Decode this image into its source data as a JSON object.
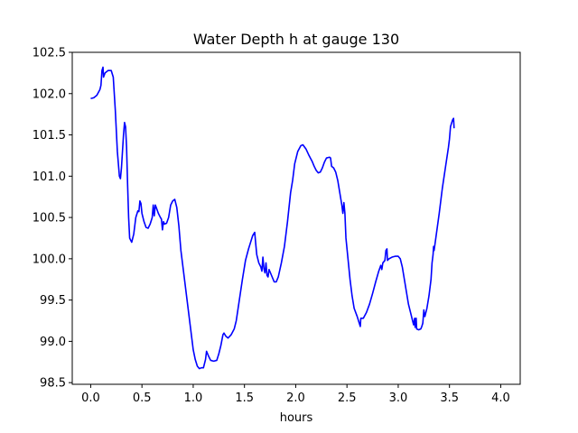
{
  "chart_data": {
    "type": "line",
    "title": "Water Depth h at gauge 130",
    "xlabel": "hours",
    "ylabel": "",
    "xlim": [
      -0.18,
      4.19
    ],
    "ylim": [
      98.48,
      102.5
    ],
    "xticks": [
      0.0,
      0.5,
      1.0,
      1.5,
      2.0,
      2.5,
      3.0,
      3.5,
      4.0
    ],
    "xtick_labels": [
      "0.0",
      "0.5",
      "1.0",
      "1.5",
      "2.0",
      "2.5",
      "3.0",
      "3.5",
      "4.0"
    ],
    "yticks": [
      98.5,
      99.0,
      99.5,
      100.0,
      100.5,
      101.0,
      101.5,
      102.0,
      102.5
    ],
    "ytick_labels": [
      "98.5",
      "99.0",
      "99.5",
      "100.0",
      "100.5",
      "101.0",
      "101.5",
      "102.0",
      "102.5"
    ],
    "grid": false,
    "series": [
      {
        "color": "#0000ff",
        "points": [
          [
            0.0,
            101.94
          ],
          [
            0.03,
            101.95
          ],
          [
            0.06,
            101.98
          ],
          [
            0.09,
            102.05
          ],
          [
            0.1,
            102.1
          ],
          [
            0.11,
            102.28
          ],
          [
            0.12,
            102.32
          ],
          [
            0.125,
            102.2
          ],
          [
            0.14,
            102.25
          ],
          [
            0.17,
            102.28
          ],
          [
            0.2,
            102.28
          ],
          [
            0.22,
            102.2
          ],
          [
            0.24,
            101.8
          ],
          [
            0.26,
            101.3
          ],
          [
            0.28,
            101.0
          ],
          [
            0.29,
            100.97
          ],
          [
            0.3,
            101.1
          ],
          [
            0.32,
            101.5
          ],
          [
            0.33,
            101.65
          ],
          [
            0.34,
            101.6
          ],
          [
            0.35,
            101.35
          ],
          [
            0.36,
            100.9
          ],
          [
            0.37,
            100.5
          ],
          [
            0.38,
            100.25
          ],
          [
            0.4,
            100.2
          ],
          [
            0.42,
            100.3
          ],
          [
            0.44,
            100.5
          ],
          [
            0.46,
            100.58
          ],
          [
            0.47,
            100.57
          ],
          [
            0.48,
            100.7
          ],
          [
            0.49,
            100.67
          ],
          [
            0.5,
            100.55
          ],
          [
            0.52,
            100.45
          ],
          [
            0.54,
            100.38
          ],
          [
            0.56,
            100.37
          ],
          [
            0.58,
            100.42
          ],
          [
            0.6,
            100.5
          ],
          [
            0.61,
            100.65
          ],
          [
            0.62,
            100.52
          ],
          [
            0.63,
            100.65
          ],
          [
            0.64,
            100.62
          ],
          [
            0.66,
            100.55
          ],
          [
            0.68,
            100.5
          ],
          [
            0.69,
            100.48
          ],
          [
            0.7,
            100.35
          ],
          [
            0.71,
            100.45
          ],
          [
            0.72,
            100.42
          ],
          [
            0.74,
            100.43
          ],
          [
            0.76,
            100.5
          ],
          [
            0.78,
            100.65
          ],
          [
            0.8,
            100.7
          ],
          [
            0.82,
            100.72
          ],
          [
            0.84,
            100.62
          ],
          [
            0.86,
            100.4
          ],
          [
            0.88,
            100.1
          ],
          [
            0.91,
            99.8
          ],
          [
            0.94,
            99.5
          ],
          [
            0.97,
            99.2
          ],
          [
            1.0,
            98.9
          ],
          [
            1.02,
            98.78
          ],
          [
            1.04,
            98.7
          ],
          [
            1.06,
            98.67
          ],
          [
            1.08,
            98.68
          ],
          [
            1.1,
            98.68
          ],
          [
            1.12,
            98.78
          ],
          [
            1.13,
            98.88
          ],
          [
            1.15,
            98.82
          ],
          [
            1.17,
            98.77
          ],
          [
            1.2,
            98.76
          ],
          [
            1.23,
            98.77
          ],
          [
            1.25,
            98.85
          ],
          [
            1.27,
            98.95
          ],
          [
            1.29,
            99.08
          ],
          [
            1.3,
            99.1
          ],
          [
            1.32,
            99.06
          ],
          [
            1.34,
            99.04
          ],
          [
            1.37,
            99.08
          ],
          [
            1.4,
            99.15
          ],
          [
            1.42,
            99.25
          ],
          [
            1.45,
            99.5
          ],
          [
            1.48,
            99.75
          ],
          [
            1.51,
            99.98
          ],
          [
            1.54,
            100.12
          ],
          [
            1.56,
            100.2
          ],
          [
            1.58,
            100.28
          ],
          [
            1.6,
            100.32
          ],
          [
            1.61,
            100.18
          ],
          [
            1.62,
            100.05
          ],
          [
            1.64,
            99.95
          ],
          [
            1.66,
            99.9
          ],
          [
            1.67,
            99.85
          ],
          [
            1.68,
            100.02
          ],
          [
            1.69,
            99.88
          ],
          [
            1.7,
            99.83
          ],
          [
            1.71,
            99.95
          ],
          [
            1.72,
            99.8
          ],
          [
            1.73,
            99.78
          ],
          [
            1.74,
            99.87
          ],
          [
            1.75,
            99.84
          ],
          [
            1.77,
            99.78
          ],
          [
            1.79,
            99.72
          ],
          [
            1.81,
            99.72
          ],
          [
            1.83,
            99.78
          ],
          [
            1.86,
            99.95
          ],
          [
            1.89,
            100.15
          ],
          [
            1.92,
            100.45
          ],
          [
            1.95,
            100.8
          ],
          [
            1.97,
            100.95
          ],
          [
            1.99,
            101.15
          ],
          [
            2.02,
            101.3
          ],
          [
            2.05,
            101.37
          ],
          [
            2.07,
            101.38
          ],
          [
            2.1,
            101.33
          ],
          [
            2.13,
            101.25
          ],
          [
            2.16,
            101.18
          ],
          [
            2.18,
            101.12
          ],
          [
            2.2,
            101.07
          ],
          [
            2.22,
            101.04
          ],
          [
            2.24,
            101.05
          ],
          [
            2.26,
            101.1
          ],
          [
            2.28,
            101.17
          ],
          [
            2.3,
            101.22
          ],
          [
            2.33,
            101.23
          ],
          [
            2.34,
            101.22
          ],
          [
            2.35,
            101.12
          ],
          [
            2.37,
            101.1
          ],
          [
            2.39,
            101.05
          ],
          [
            2.41,
            100.95
          ],
          [
            2.43,
            100.8
          ],
          [
            2.45,
            100.65
          ],
          [
            2.46,
            100.55
          ],
          [
            2.47,
            100.68
          ],
          [
            2.48,
            100.55
          ],
          [
            2.49,
            100.25
          ],
          [
            2.51,
            100.0
          ],
          [
            2.53,
            99.75
          ],
          [
            2.55,
            99.55
          ],
          [
            2.57,
            99.4
          ],
          [
            2.6,
            99.3
          ],
          [
            2.62,
            99.22
          ],
          [
            2.63,
            99.18
          ],
          [
            2.635,
            99.28
          ],
          [
            2.66,
            99.28
          ],
          [
            2.69,
            99.35
          ],
          [
            2.72,
            99.45
          ],
          [
            2.75,
            99.58
          ],
          [
            2.78,
            99.72
          ],
          [
            2.81,
            99.85
          ],
          [
            2.83,
            99.92
          ],
          [
            2.84,
            99.87
          ],
          [
            2.85,
            99.95
          ],
          [
            2.87,
            99.98
          ],
          [
            2.88,
            100.1
          ],
          [
            2.89,
            100.12
          ],
          [
            2.895,
            99.98
          ],
          [
            2.91,
            100.0
          ],
          [
            2.94,
            100.02
          ],
          [
            2.97,
            100.03
          ],
          [
            3.0,
            100.03
          ],
          [
            3.02,
            100.0
          ],
          [
            3.04,
            99.9
          ],
          [
            3.06,
            99.75
          ],
          [
            3.08,
            99.6
          ],
          [
            3.1,
            99.45
          ],
          [
            3.12,
            99.35
          ],
          [
            3.14,
            99.25
          ],
          [
            3.15,
            99.2
          ],
          [
            3.16,
            99.28
          ],
          [
            3.165,
            99.17
          ],
          [
            3.175,
            99.28
          ],
          [
            3.18,
            99.15
          ],
          [
            3.2,
            99.14
          ],
          [
            3.22,
            99.15
          ],
          [
            3.23,
            99.18
          ],
          [
            3.24,
            99.22
          ],
          [
            3.25,
            99.38
          ],
          [
            3.26,
            99.3
          ],
          [
            3.28,
            99.4
          ],
          [
            3.3,
            99.55
          ],
          [
            3.32,
            99.75
          ],
          [
            3.33,
            99.95
          ],
          [
            3.34,
            100.05
          ],
          [
            3.345,
            100.15
          ],
          [
            3.35,
            100.1
          ],
          [
            3.37,
            100.28
          ],
          [
            3.4,
            100.55
          ],
          [
            3.43,
            100.85
          ],
          [
            3.46,
            101.1
          ],
          [
            3.49,
            101.35
          ],
          [
            3.5,
            101.45
          ],
          [
            3.51,
            101.6
          ],
          [
            3.53,
            101.68
          ],
          [
            3.54,
            101.7
          ],
          [
            3.545,
            101.58
          ]
        ]
      }
    ]
  }
}
